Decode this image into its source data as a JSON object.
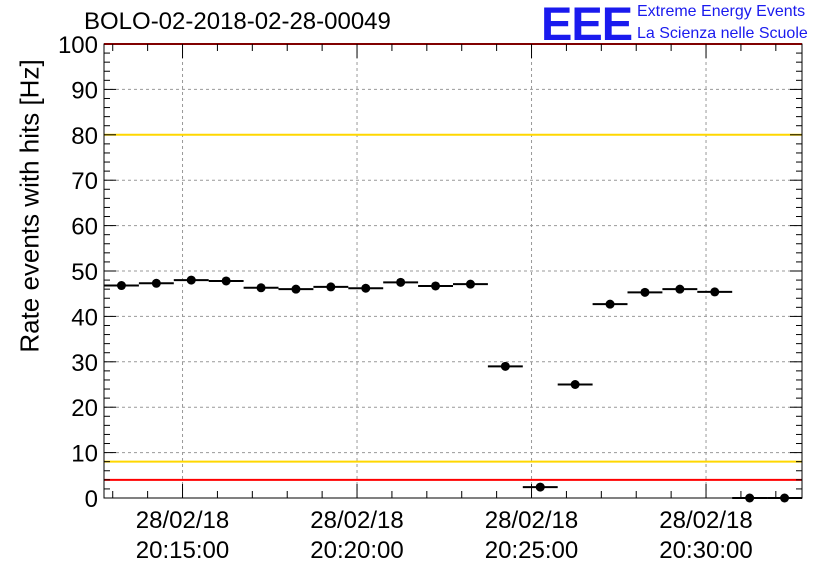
{
  "title": "BOLO-02-2018-02-28-00049",
  "logo": {
    "mark": "EEE",
    "line1": "Extreme Energy Events",
    "line2": "La Scienza nelle Scuole"
  },
  "colors": {
    "limit_red": "#ff0000",
    "limit_yellow": "#ffd700",
    "grid": "#999999",
    "logo_blue": "#1a1aee",
    "marker": "#000000"
  },
  "chart_data": {
    "type": "scatter",
    "title": "BOLO-02-2018-02-28-00049",
    "xlabel": "",
    "ylabel": "Rate events with hits [Hz]",
    "ylim": [
      0,
      100
    ],
    "xlim": [
      "2018-02-28 20:12:45",
      "2018-02-28 20:32:45"
    ],
    "yticks": [
      0,
      10,
      20,
      30,
      40,
      50,
      60,
      70,
      80,
      90,
      100
    ],
    "xticks": [
      {
        "date": "28/02/18",
        "time": "20:15:00"
      },
      {
        "date": "28/02/18",
        "time": "20:20:00"
      },
      {
        "date": "28/02/18",
        "time": "20:25:00"
      },
      {
        "date": "28/02/18",
        "time": "20:30:00"
      }
    ],
    "grid": true,
    "bin_width_seconds": 60,
    "reference_lines": [
      {
        "y": 100,
        "color": "red"
      },
      {
        "y": 80,
        "color": "yellow"
      },
      {
        "y": 8,
        "color": "yellow"
      },
      {
        "y": 4,
        "color": "red"
      }
    ],
    "series": [
      {
        "x": [
          "20:13:15",
          "20:14:15",
          "20:15:15",
          "20:16:15",
          "20:17:15",
          "20:18:15",
          "20:19:15",
          "20:20:15",
          "20:21:15",
          "20:22:15",
          "20:23:15",
          "20:24:15",
          "20:25:15",
          "20:26:15",
          "20:27:15",
          "20:28:15",
          "20:29:15",
          "20:30:15",
          "20:31:15",
          "20:32:15"
        ],
        "y": [
          46.8,
          47.3,
          48.0,
          47.8,
          46.3,
          46.0,
          46.5,
          46.2,
          47.5,
          46.7,
          47.1,
          29.0,
          2.4,
          25.0,
          42.7,
          45.3,
          46.0,
          45.4,
          0,
          0
        ]
      }
    ]
  }
}
